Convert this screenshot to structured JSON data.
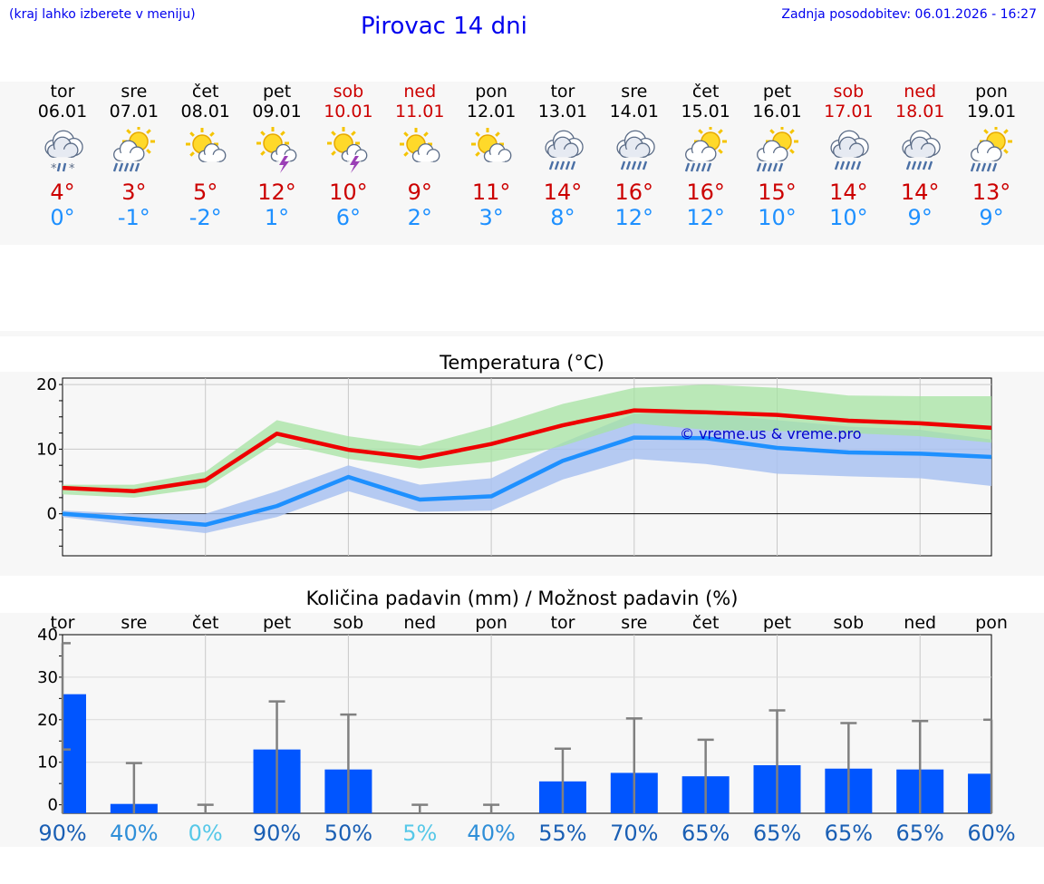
{
  "header": {
    "left_note": "(kraj lahko izberete v meniju)",
    "title": "Pirovac 14 dni",
    "updated": "Zadnja posodobitev: 06.01.2026 - 16:27"
  },
  "days": [
    {
      "name": "tor",
      "date": "06.01",
      "weekend": false,
      "icon": "cloud-snow-icon",
      "tmax": "4°",
      "tmin": "0°",
      "pct": "90%"
    },
    {
      "name": "sre",
      "date": "07.01",
      "weekend": false,
      "icon": "sun-cloud-rain-icon",
      "tmax": "3°",
      "tmin": "-1°",
      "pct": "40%"
    },
    {
      "name": "čet",
      "date": "08.01",
      "weekend": false,
      "icon": "sun-cloud-icon",
      "tmax": "5°",
      "tmin": "-2°",
      "pct": "0%"
    },
    {
      "name": "pet",
      "date": "09.01",
      "weekend": false,
      "icon": "sun-storm-icon",
      "tmax": "12°",
      "tmin": "1°",
      "pct": "90%"
    },
    {
      "name": "sob",
      "date": "10.01",
      "weekend": true,
      "icon": "sun-storm-icon",
      "tmax": "10°",
      "tmin": "6°",
      "pct": "50%"
    },
    {
      "name": "ned",
      "date": "11.01",
      "weekend": true,
      "icon": "sun-cloud-icon",
      "tmax": "9°",
      "tmin": "2°",
      "pct": "5%"
    },
    {
      "name": "pon",
      "date": "12.01",
      "weekend": false,
      "icon": "sun-cloud-icon",
      "tmax": "11°",
      "tmin": "3°",
      "pct": "40%"
    },
    {
      "name": "tor",
      "date": "13.01",
      "weekend": false,
      "icon": "cloud-rain-icon",
      "tmax": "14°",
      "tmin": "8°",
      "pct": "55%"
    },
    {
      "name": "sre",
      "date": "14.01",
      "weekend": false,
      "icon": "cloud-rain-icon",
      "tmax": "16°",
      "tmin": "12°",
      "pct": "70%"
    },
    {
      "name": "čet",
      "date": "15.01",
      "weekend": false,
      "icon": "sun-cloud-rain-icon",
      "tmax": "16°",
      "tmin": "12°",
      "pct": "65%"
    },
    {
      "name": "pet",
      "date": "16.01",
      "weekend": false,
      "icon": "sun-cloud-rain-icon",
      "tmax": "15°",
      "tmin": "10°",
      "pct": "65%"
    },
    {
      "name": "sob",
      "date": "17.01",
      "weekend": true,
      "icon": "cloud-rain-icon",
      "tmax": "14°",
      "tmin": "10°",
      "pct": "65%"
    },
    {
      "name": "ned",
      "date": "18.01",
      "weekend": true,
      "icon": "cloud-rain-icon",
      "tmax": "14°",
      "tmin": "9°",
      "pct": "65%"
    },
    {
      "name": "pon",
      "date": "19.01",
      "weekend": false,
      "icon": "sun-cloud-rain-icon",
      "tmax": "13°",
      "tmin": "9°",
      "pct": "60%"
    }
  ],
  "colors": {
    "max_line": "#ee0000",
    "min_line": "#1e90ff",
    "max_band": "#a6e3a1",
    "min_band": "#a9c2f1",
    "bar": "#0055ff",
    "error_bar": "#808080",
    "pct_high": "#1a5fb4",
    "pct_mid": "#2f8fd8",
    "pct_low": "#56c8e8"
  },
  "chart_data": [
    {
      "type": "line",
      "title": "Temperatura (°C)",
      "watermark": "© vreme.us & vreme.pro",
      "ylim": [
        -6.5,
        21
      ],
      "yticks": [
        0,
        10,
        20
      ],
      "x": [
        0,
        1,
        2,
        3,
        4,
        5,
        6,
        7,
        8,
        9,
        10,
        11,
        12,
        13
      ],
      "series": [
        {
          "name": "max",
          "values": [
            4,
            3.5,
            5.2,
            12.4,
            9.9,
            8.6,
            10.8,
            13.7,
            16,
            15.7,
            15.3,
            14.4,
            14,
            13.3
          ],
          "band_upper": [
            4.5,
            4.5,
            6.5,
            14.5,
            12,
            10.5,
            13.5,
            17,
            19.5,
            20,
            19.5,
            18.3,
            18.2,
            18.2
          ],
          "band_lower": [
            3,
            2.5,
            4,
            11,
            8.5,
            7,
            8,
            10.5,
            14,
            13,
            12.8,
            12.5,
            12,
            11
          ]
        },
        {
          "name": "min",
          "values": [
            0,
            -0.8,
            -1.7,
            1.2,
            5.7,
            2.2,
            2.7,
            8.2,
            11.8,
            11.7,
            10.2,
            9.5,
            9.3,
            8.8
          ],
          "band_upper": [
            0.5,
            0,
            0,
            3.5,
            7.5,
            4.5,
            5.5,
            11,
            15.5,
            15.5,
            14.5,
            13.5,
            13,
            11.5
          ],
          "band_lower": [
            -0.5,
            -1.8,
            -3,
            -0.5,
            3.5,
            0.3,
            0.5,
            5.3,
            8.5,
            7.7,
            6.2,
            5.8,
            5.5,
            4.3
          ]
        }
      ]
    },
    {
      "type": "bar",
      "title": "Količina padavin (mm) / Možnost padavin (%)",
      "ylim": [
        -2,
        40
      ],
      "yticks": [
        0,
        10,
        20,
        30,
        40
      ],
      "categories": [
        "tor",
        "sre",
        "čet",
        "pet",
        "sob",
        "ned",
        "pon",
        "tor",
        "sre",
        "čet",
        "pet",
        "sob",
        "ned",
        "pon"
      ],
      "values": [
        26,
        0.2,
        0,
        13,
        8.3,
        0,
        0,
        5.5,
        7.5,
        6.7,
        9.3,
        8.5,
        8.3,
        7.3
      ],
      "error_low": [
        13,
        0,
        0,
        0,
        0,
        0,
        0,
        0,
        0,
        0,
        0,
        0,
        0,
        0
      ],
      "error_high": [
        38,
        9.8,
        0,
        24.3,
        21.2,
        0,
        0,
        13.2,
        20.3,
        15.3,
        22.2,
        19.2,
        19.7,
        20
      ],
      "probability_pct": [
        90,
        40,
        0,
        90,
        50,
        5,
        40,
        55,
        70,
        65,
        65,
        65,
        65,
        60
      ]
    }
  ]
}
